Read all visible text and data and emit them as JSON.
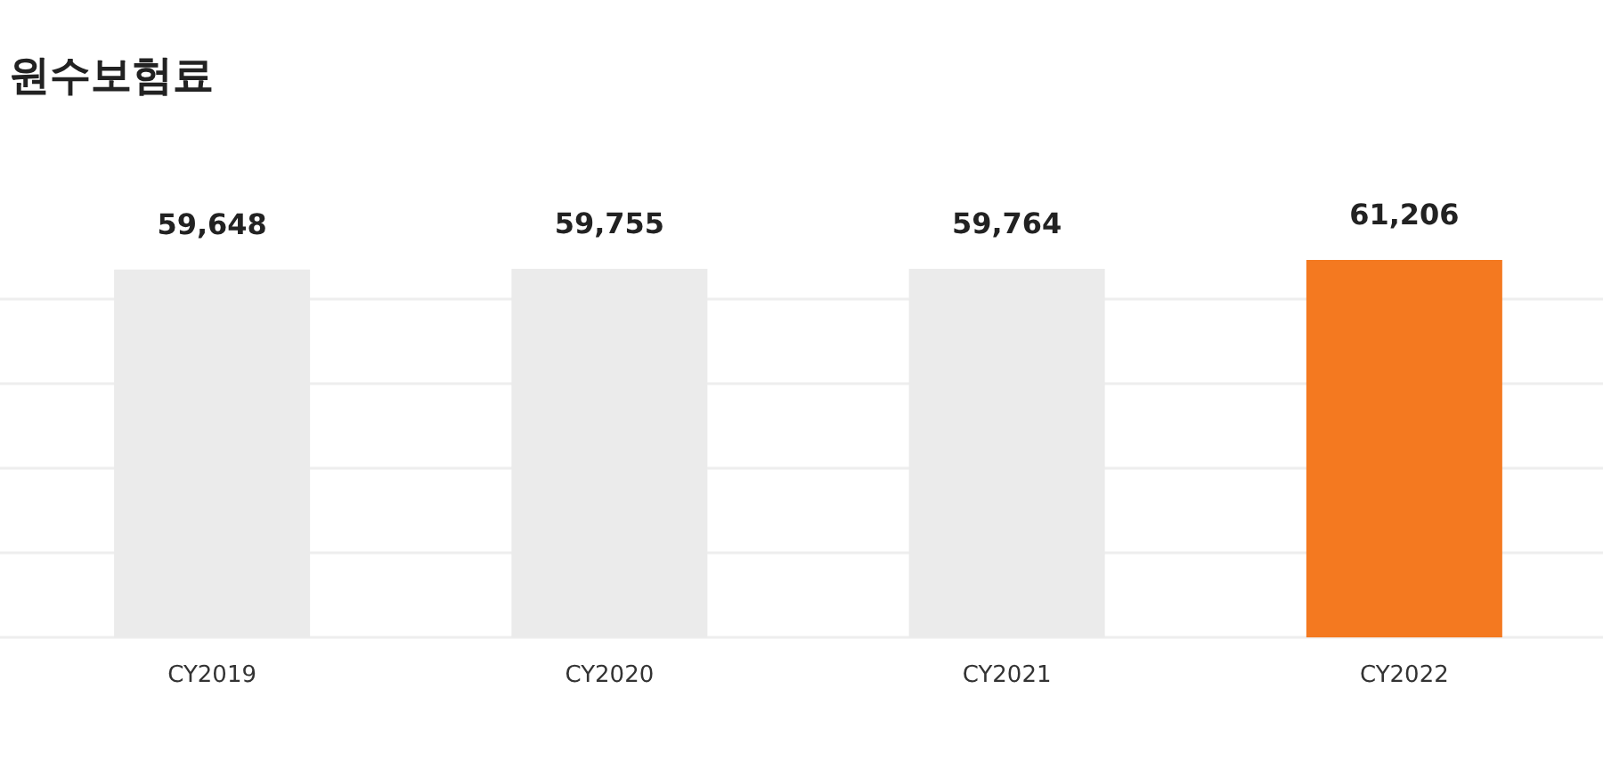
{
  "chart_data": {
    "type": "bar",
    "title": "원수보험료",
    "categories": [
      "CY2019",
      "CY2020",
      "CY2021",
      "CY2022"
    ],
    "values": [
      59648,
      59755,
      59764,
      61206
    ],
    "colors": [
      "#ebebeb",
      "#ebebeb",
      "#ebebeb",
      "#f47920"
    ],
    "value_labels": [
      "59,648",
      "59,755",
      "59,764",
      "61,206"
    ],
    "grid": "y"
  }
}
